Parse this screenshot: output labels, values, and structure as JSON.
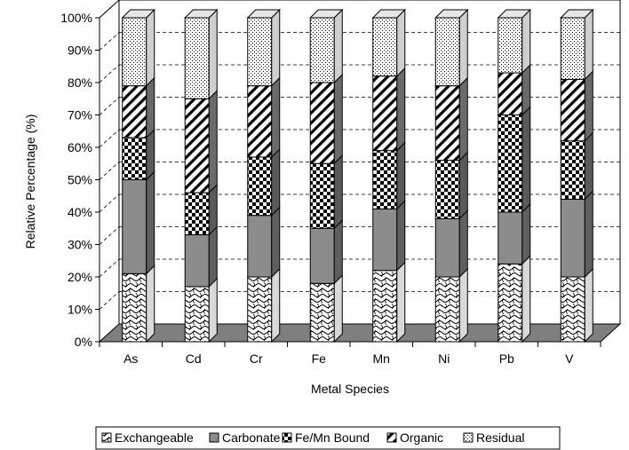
{
  "chart_data": {
    "type": "bar",
    "stacked": true,
    "percent_stacked": true,
    "three_d": true,
    "categories": [
      "As",
      "Cd",
      "Cr",
      "Fe",
      "Mn",
      "Ni",
      "Pb",
      "V"
    ],
    "series": [
      {
        "name": "Exchangeable",
        "values": [
          21,
          17,
          20,
          18,
          22,
          20,
          24,
          20
        ],
        "pattern": "squiggle"
      },
      {
        "name": "Carbonate",
        "values": [
          29,
          16,
          19,
          17,
          19,
          18,
          16,
          24
        ],
        "pattern": "solid-gray"
      },
      {
        "name": "Fe/Mn Bound",
        "values": [
          13,
          13,
          18,
          20,
          18,
          18,
          30,
          18
        ],
        "pattern": "checker"
      },
      {
        "name": "Organic",
        "values": [
          16,
          29,
          22,
          25,
          23,
          23,
          13,
          19
        ],
        "pattern": "diagonal-stripes"
      },
      {
        "name": "Residual",
        "values": [
          21,
          25,
          21,
          20,
          18,
          21,
          17,
          19
        ],
        "pattern": "dots"
      }
    ],
    "xlabel": "Metal Species",
    "ylabel": "Relative Percentage (%)",
    "ylim": [
      0,
      100
    ],
    "yticks": [
      "0%",
      "10%",
      "20%",
      "30%",
      "40%",
      "50%",
      "60%",
      "70%",
      "80%",
      "90%",
      "100%"
    ],
    "grid": true,
    "legend_position": "bottom"
  }
}
